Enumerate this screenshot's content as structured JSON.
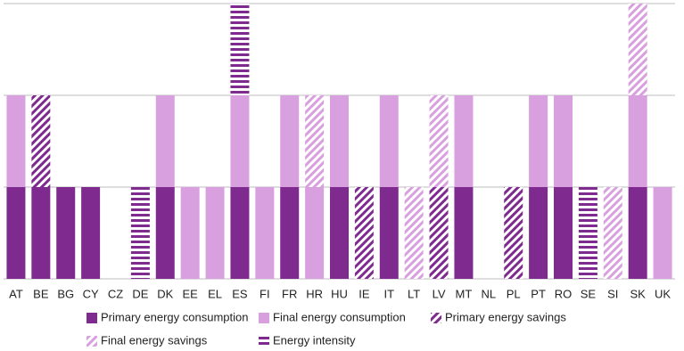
{
  "chart_data": {
    "type": "stacked_bar",
    "categories": [
      "AT",
      "BE",
      "BG",
      "CY",
      "CZ",
      "DE",
      "DK",
      "EE",
      "EL",
      "ES",
      "FI",
      "FR",
      "HR",
      "HU",
      "IE",
      "IT",
      "LT",
      "LV",
      "MT",
      "NL",
      "PL",
      "PT",
      "RO",
      "SE",
      "SI",
      "SK",
      "UK"
    ],
    "series": [
      {
        "name": "Primary energy consumption",
        "color": "#7f2a8f",
        "pattern": "solid",
        "values": [
          1,
          1,
          1,
          1,
          0,
          0,
          1,
          0,
          0,
          1,
          0,
          1,
          0,
          1,
          0,
          1,
          0,
          0,
          1,
          0,
          0,
          1,
          1,
          0,
          0,
          1,
          0
        ]
      },
      {
        "name": "Final energy consumption",
        "color": "#d9a0df",
        "pattern": "solid",
        "values": [
          1,
          0,
          0,
          0,
          0,
          0,
          1,
          1,
          1,
          1,
          1,
          1,
          1,
          1,
          0,
          1,
          0,
          0,
          1,
          0,
          0,
          1,
          1,
          0,
          0,
          1,
          1
        ]
      },
      {
        "name": "Primary energy savings",
        "color": "#7f2a8f",
        "pattern": "diagonal",
        "values": [
          0,
          1,
          0,
          0,
          0,
          0,
          0,
          0,
          0,
          0,
          0,
          0,
          0,
          0,
          1,
          0,
          0,
          1,
          0,
          0,
          1,
          0,
          0,
          0,
          0,
          0,
          0
        ]
      },
      {
        "name": "Final energy savings",
        "color": "#d9a0df",
        "pattern": "diagonal",
        "values": [
          0,
          0,
          0,
          0,
          0,
          0,
          0,
          0,
          0,
          0,
          0,
          0,
          1,
          0,
          0,
          0,
          1,
          1,
          0,
          0,
          0,
          0,
          0,
          0,
          1,
          1,
          0
        ]
      },
      {
        "name": "Energy intensity",
        "color": "#7f2a8f",
        "pattern": "horizontal",
        "values": [
          0,
          0,
          0,
          0,
          0,
          1,
          0,
          0,
          0,
          1,
          0,
          0,
          0,
          0,
          0,
          0,
          0,
          0,
          0,
          0,
          0,
          0,
          0,
          1,
          0,
          0,
          0
        ]
      }
    ],
    "ylim": [
      0,
      3
    ],
    "ygrid": [
      0,
      1,
      2,
      3
    ],
    "grid": true,
    "legend": "bottom"
  }
}
